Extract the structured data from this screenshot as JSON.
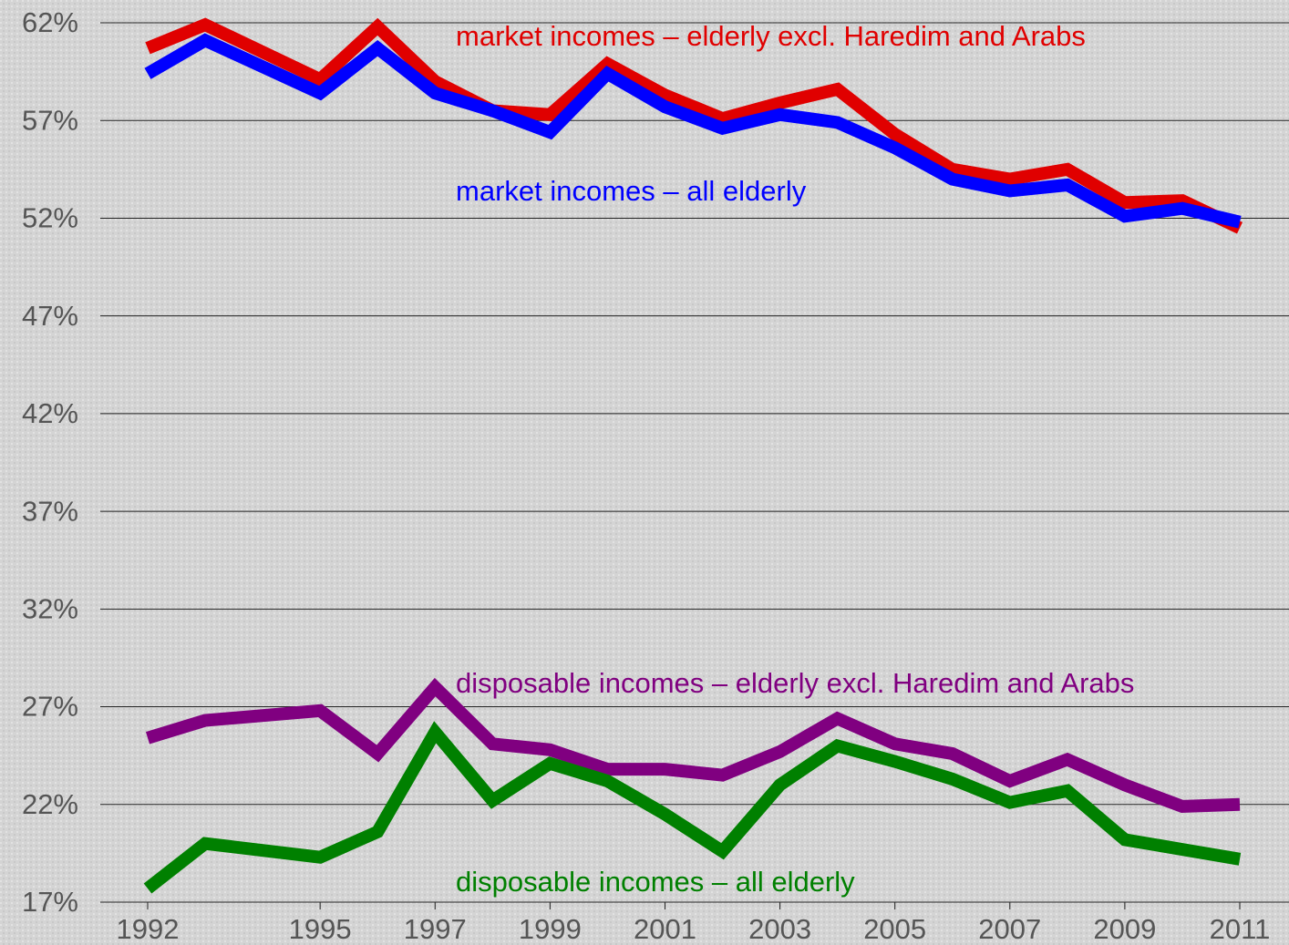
{
  "chart_data": {
    "type": "line",
    "x": [
      1992,
      1993,
      1995,
      1996,
      1997,
      1998,
      1999,
      2000,
      2001,
      2002,
      2003,
      2004,
      2005,
      2006,
      2007,
      2008,
      2009,
      2010,
      2011
    ],
    "series": [
      {
        "name": "market incomes – elderly excl. Haredim and Arabs",
        "color": "#e00000",
        "values": [
          60.7,
          61.9,
          59.1,
          61.8,
          59.0,
          57.5,
          57.3,
          59.9,
          58.3,
          57.1,
          57.9,
          58.6,
          56.3,
          54.5,
          54.0,
          54.5,
          52.8,
          52.9,
          51.5
        ]
      },
      {
        "name": "market incomes – all elderly",
        "color": "#0000ff",
        "values": [
          59.4,
          61.1,
          58.4,
          60.7,
          58.4,
          57.5,
          56.4,
          59.4,
          57.7,
          56.6,
          57.3,
          56.9,
          55.6,
          54.0,
          53.4,
          53.7,
          52.1,
          52.5,
          51.8
        ]
      },
      {
        "name": "disposable incomes – elderly excl. Haredim and Arabs",
        "color": "#800080",
        "values": [
          25.4,
          26.3,
          26.8,
          24.6,
          28.0,
          25.1,
          24.8,
          23.8,
          23.8,
          23.5,
          24.7,
          26.4,
          25.1,
          24.6,
          23.2,
          24.3,
          23.0,
          21.9,
          22.0
        ]
      },
      {
        "name": "disposable incomes – all elderly",
        "color": "#008000",
        "values": [
          17.7,
          20.0,
          19.3,
          20.6,
          25.7,
          22.2,
          24.1,
          23.2,
          21.5,
          19.6,
          23.0,
          25.0,
          24.2,
          23.3,
          22.1,
          22.7,
          20.2,
          19.7,
          19.2
        ]
      }
    ],
    "xlim": [
      1992,
      2011
    ],
    "xticks": [
      1992,
      1995,
      1997,
      1999,
      2001,
      2003,
      2005,
      2007,
      2009,
      2011
    ],
    "ylim": [
      17,
      62
    ],
    "yticks": [
      {
        "value": 17,
        "label": "17%"
      },
      {
        "value": 22,
        "label": "22%"
      },
      {
        "value": 27,
        "label": "27%"
      },
      {
        "value": 32,
        "label": "32%"
      },
      {
        "value": 37,
        "label": "37%"
      },
      {
        "value": 42,
        "label": "42%"
      },
      {
        "value": 47,
        "label": "47%"
      },
      {
        "value": 52,
        "label": "52%"
      },
      {
        "value": 57,
        "label": "57%"
      },
      {
        "value": 62,
        "label": "62%"
      }
    ],
    "grid": true
  }
}
